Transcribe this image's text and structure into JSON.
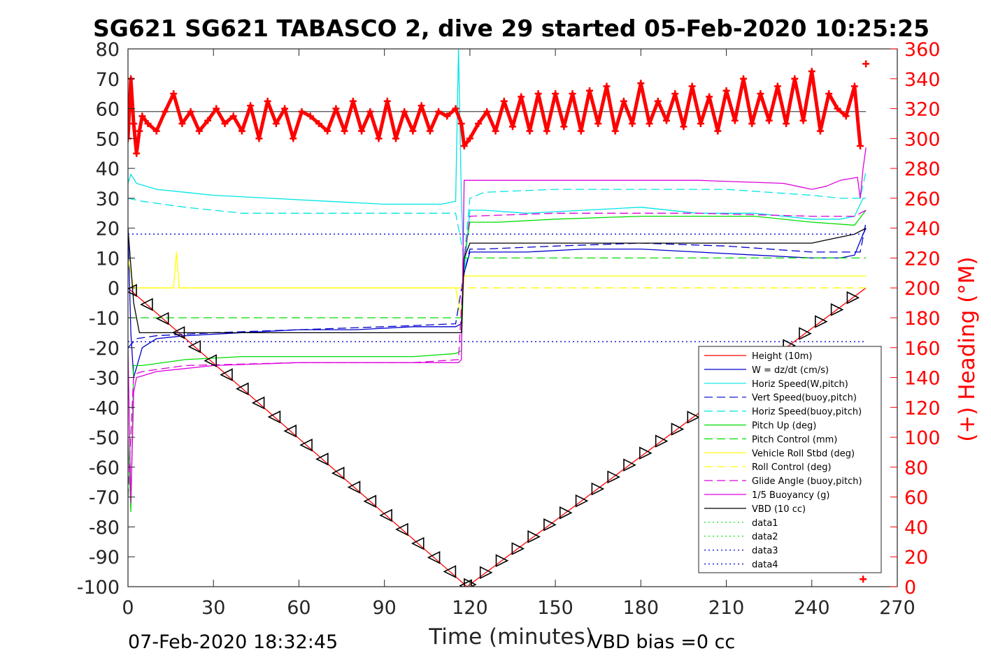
{
  "chart_data": {
    "type": "line",
    "title": "SG621 SG621 TABASCO 2, dive 29 started 05-Feb-2020 10:25:25",
    "xlabel": "Time (minutes)",
    "ylabel_right": "(+) Heading (°M)",
    "xlim": [
      0,
      270
    ],
    "ylim": [
      -100,
      80
    ],
    "ylim_right": [
      0,
      360
    ],
    "x_ticks": [
      "0",
      "30",
      "60",
      "90",
      "120",
      "150",
      "180",
      "210",
      "240",
      "270"
    ],
    "y_ticks": [
      "80",
      "70",
      "60",
      "50",
      "40",
      "30",
      "20",
      "10",
      "0",
      "-10",
      "-20",
      "-30",
      "-40",
      "-50",
      "-60",
      "-70",
      "-80",
      "-90",
      "-100"
    ],
    "y_right_ticks": [
      "360",
      "340",
      "320",
      "300",
      "280",
      "260",
      "240",
      "220",
      "200",
      "180",
      "160",
      "140",
      "120",
      "100",
      "80",
      "60",
      "40",
      "20",
      "0"
    ],
    "footer_left": "07-Feb-2020 18:32:45",
    "footer_right": "VBD bias =0 cc",
    "grid": false,
    "legend_position": "bottom-right",
    "series": [
      {
        "name": "Height (10m)",
        "color": "#ff0000",
        "dash": "solid",
        "x": [
          0,
          119,
          259
        ],
        "y": [
          0,
          -100,
          0
        ]
      },
      {
        "name": "W = dz/dt (cm/s)",
        "color": "#0000cc",
        "dash": "solid",
        "x": [
          0,
          1,
          2,
          5,
          10,
          20,
          40,
          60,
          80,
          100,
          115,
          117,
          118,
          120,
          125,
          140,
          160,
          180,
          200,
          220,
          240,
          250,
          255,
          258,
          259
        ],
        "y": [
          20,
          -15,
          -30,
          -20,
          -17,
          -16,
          -15,
          -14,
          -14,
          -13,
          -13,
          -12,
          5,
          12,
          12,
          12,
          13,
          13,
          12,
          11,
          10,
          10,
          11,
          18,
          20
        ]
      },
      {
        "name": "Horiz Speed(W,pitch)",
        "color": "#00e5e5",
        "dash": "solid",
        "x": [
          0,
          1,
          3,
          10,
          20,
          30,
          50,
          70,
          90,
          110,
          115,
          116,
          117,
          118,
          120,
          125,
          140,
          160,
          180,
          200,
          220,
          240,
          250,
          255,
          258,
          259
        ],
        "y": [
          35,
          38,
          35,
          33,
          32,
          31,
          30,
          29,
          28,
          28,
          29,
          80,
          30,
          5,
          26,
          26,
          25,
          26,
          27,
          25,
          25,
          23,
          23,
          24,
          30,
          30
        ]
      },
      {
        "name": "Vert Speed(buoy,pitch)",
        "color": "#0000cc",
        "dash": "dashed",
        "x": [
          0,
          3,
          10,
          30,
          60,
          90,
          115,
          118,
          120,
          125,
          150,
          180,
          210,
          240,
          250,
          257,
          259
        ],
        "y": [
          -20,
          -17,
          -16,
          -15,
          -14,
          -13,
          -12,
          5,
          13,
          13,
          14,
          15,
          14,
          12,
          12,
          12,
          22
        ]
      },
      {
        "name": "Horiz Speed(buoy,pitch)",
        "color": "#00e5e5",
        "dash": "dashed",
        "x": [
          0,
          5,
          20,
          40,
          60,
          90,
          115,
          118,
          120,
          125,
          150,
          180,
          210,
          240,
          250,
          257,
          259
        ],
        "y": [
          30,
          29,
          27,
          25,
          25,
          25,
          25,
          10,
          30,
          32,
          33,
          33,
          33,
          31,
          30,
          30,
          39
        ]
      },
      {
        "name": "Pitch Up (deg)",
        "color": "#00dd00",
        "dash": "solid",
        "x": [
          0,
          1,
          2,
          5,
          20,
          40,
          60,
          80,
          100,
          115,
          117,
          118,
          120,
          130,
          150,
          180,
          200,
          220,
          240,
          255,
          259
        ],
        "y": [
          -50,
          -75,
          -26,
          -26,
          -24,
          -23,
          -23,
          -23,
          -23,
          -22,
          -21,
          10,
          22,
          22,
          23,
          24,
          24,
          24,
          22,
          21,
          26
        ]
      },
      {
        "name": "Pitch Control (mm)",
        "color": "#00dd00",
        "dash": "dashed",
        "x": [
          0,
          10,
          60,
          117,
          118,
          120,
          150,
          200,
          250,
          259
        ],
        "y": [
          -10,
          -10,
          -10,
          -10,
          10,
          10,
          10,
          10,
          10,
          10
        ]
      },
      {
        "name": "Vehicle Roll Stbd (deg)",
        "color": "#ffff00",
        "dash": "solid",
        "x": [
          0,
          2,
          5,
          16,
          17,
          18,
          20,
          40,
          60,
          80,
          100,
          115,
          117,
          118,
          120,
          140,
          160,
          180,
          200,
          220,
          240,
          255,
          259
        ],
        "y": [
          10,
          0,
          0,
          0,
          12,
          0,
          0,
          0,
          0,
          0,
          0,
          0,
          -10,
          4,
          4,
          4,
          4,
          4,
          4,
          4,
          4,
          4,
          4
        ]
      },
      {
        "name": "Roll Control (deg)",
        "color": "#ffff00",
        "dash": "dashed",
        "x": [
          0,
          117,
          118,
          259
        ],
        "y": [
          0,
          0,
          0,
          0
        ]
      },
      {
        "name": "Glide Angle (buoy,pitch)",
        "color": "#dd00dd",
        "dash": "dashed",
        "x": [
          0,
          2,
          5,
          20,
          60,
          100,
          116,
          118,
          120,
          150,
          200,
          240,
          255,
          259
        ],
        "y": [
          -70,
          -29,
          -28,
          -26,
          -25,
          -25,
          -24,
          10,
          24,
          25,
          25,
          24,
          24,
          26
        ]
      },
      {
        "name": "1/5 Buoyancy (g)",
        "color": "#dd00dd",
        "dash": "solid",
        "x": [
          0,
          1,
          2,
          3,
          10,
          30,
          60,
          90,
          116,
          117,
          118,
          120,
          130,
          160,
          200,
          230,
          240,
          245,
          250,
          256,
          257,
          258,
          259
        ],
        "y": [
          -20,
          -72,
          -35,
          -30,
          -28,
          -26,
          -25,
          -25,
          -25,
          -24,
          36,
          36,
          36,
          36,
          36,
          35,
          33,
          34,
          36,
          37,
          30,
          40,
          47
        ]
      },
      {
        "name": "VBD (10 cc)",
        "color": "#000000",
        "dash": "solid",
        "x": [
          0,
          2,
          4,
          30,
          60,
          90,
          117,
          118,
          120,
          150,
          200,
          240,
          245,
          250,
          255,
          259
        ],
        "y": [
          20,
          -5,
          -15,
          -15,
          -15,
          -15,
          -15,
          10,
          15,
          15,
          15,
          15,
          16,
          17,
          18,
          20
        ]
      },
      {
        "name": "data1",
        "color": "#00dd00",
        "dash": "dotted",
        "x": [],
        "y": []
      },
      {
        "name": "data2",
        "color": "#00dd00",
        "dash": "dotted",
        "x": [],
        "y": []
      },
      {
        "name": "data3",
        "color": "#0000cc",
        "dash": "dotted",
        "x": [
          0,
          259
        ],
        "y": [
          18,
          18
        ]
      },
      {
        "name": "data4",
        "color": "#0000cc",
        "dash": "dotted",
        "x": [
          0,
          259
        ],
        "y": [
          -18,
          -18
        ]
      }
    ],
    "heading_series": {
      "color": "#ff0000",
      "axis": "right",
      "mean": 318,
      "x": [
        0,
        1,
        2,
        3,
        4,
        5,
        7,
        10,
        13,
        16,
        19,
        22,
        25,
        28,
        31,
        34,
        37,
        40,
        43,
        46,
        49,
        52,
        55,
        58,
        61,
        64,
        67,
        70,
        73,
        76,
        79,
        82,
        85,
        88,
        91,
        94,
        97,
        100,
        103,
        106,
        109,
        112,
        115,
        117,
        118,
        120,
        123,
        126,
        129,
        132,
        135,
        138,
        141,
        144,
        147,
        150,
        153,
        156,
        159,
        162,
        165,
        168,
        171,
        174,
        177,
        180,
        183,
        186,
        189,
        192,
        195,
        198,
        201,
        204,
        207,
        210,
        213,
        216,
        219,
        222,
        225,
        228,
        231,
        234,
        237,
        240,
        243,
        246,
        249,
        252,
        255,
        257,
        258,
        259
      ],
      "y": [
        300,
        340,
        310,
        290,
        305,
        315,
        310,
        305,
        318,
        330,
        310,
        318,
        305,
        312,
        320,
        310,
        315,
        305,
        322,
        300,
        325,
        310,
        320,
        300,
        318,
        315,
        310,
        305,
        320,
        305,
        325,
        305,
        318,
        300,
        325,
        300,
        318,
        305,
        322,
        305,
        318,
        315,
        320,
        310,
        295,
        300,
        310,
        318,
        305,
        325,
        308,
        328,
        305,
        330,
        305,
        330,
        308,
        330,
        305,
        332,
        310,
        335,
        305,
        325,
        310,
        337,
        310,
        325,
        312,
        330,
        308,
        335,
        310,
        328,
        305,
        332,
        312,
        340,
        310,
        330,
        312,
        335,
        310,
        340,
        312,
        345,
        305,
        330,
        320,
        315,
        335,
        295,
        5,
        350
      ]
    }
  }
}
